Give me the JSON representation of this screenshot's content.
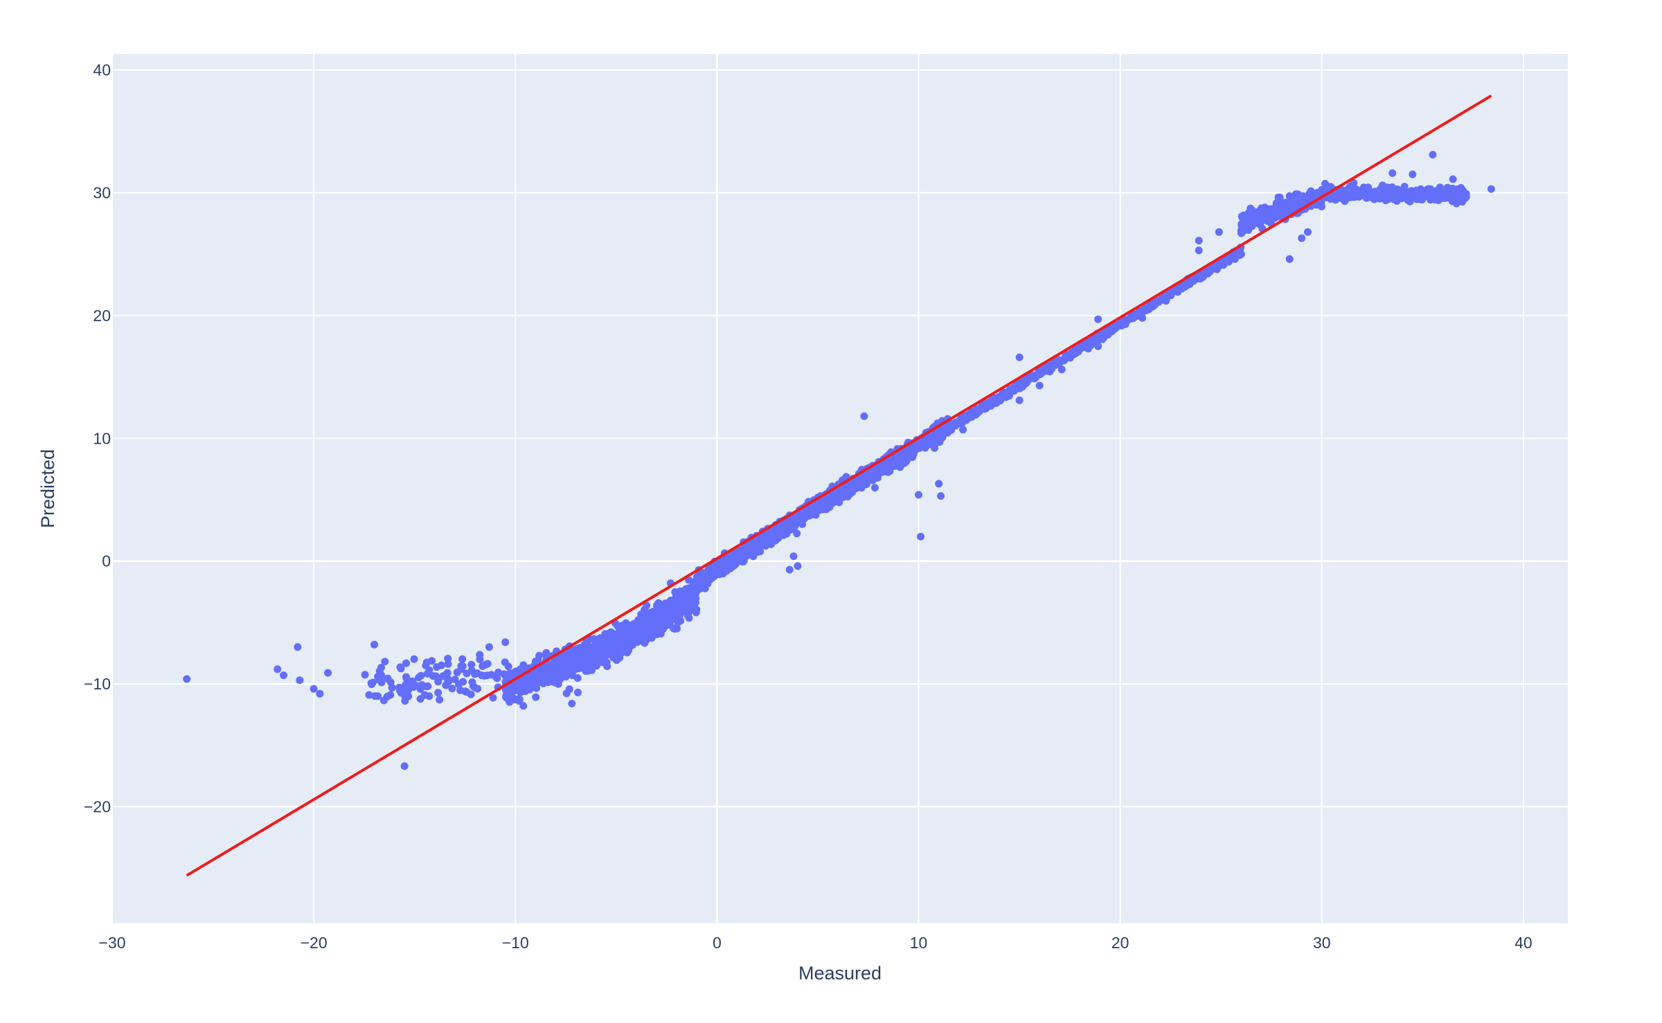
{
  "chart_data": {
    "type": "scatter",
    "title": "",
    "xlabel": "Measured",
    "ylabel": "Predicted",
    "xlim": [
      -30,
      42.2
    ],
    "ylim": [
      -29.5,
      41.3
    ],
    "x_ticks": [
      -30,
      -20,
      -10,
      0,
      10,
      20,
      30,
      40
    ],
    "x_tick_labels": [
      "−30",
      "−20",
      "−10",
      "0",
      "10",
      "20",
      "30",
      "40"
    ],
    "y_ticks": [
      -20,
      -10,
      0,
      10,
      20,
      30,
      40
    ],
    "y_tick_labels": [
      "−20",
      "−10",
      "0",
      "10",
      "20",
      "30",
      "40"
    ],
    "grid": true,
    "legend": "none",
    "colors": {
      "points": "#636efa",
      "line": "#ef1c1c",
      "plot_bg": "#e5ecf6",
      "text": "#2a3f5f"
    },
    "series": [
      {
        "kind": "markers",
        "outliers": [
          [
            -26.3,
            -9.6
          ],
          [
            -21.8,
            -8.8
          ],
          [
            -21.5,
            -9.3
          ],
          [
            -20.8,
            -7.0
          ],
          [
            -20.7,
            -9.7
          ],
          [
            -20.0,
            -10.4
          ],
          [
            -19.7,
            -10.8
          ],
          [
            -19.3,
            -9.1
          ],
          [
            -17.0,
            -6.8
          ],
          [
            -15.5,
            -16.7
          ],
          [
            -14.5,
            -10.9
          ],
          [
            -16.2,
            -10.9
          ],
          [
            -12.5,
            -10.6
          ],
          [
            -11.3,
            -7.0
          ],
          [
            -10.5,
            -6.6
          ],
          [
            -7.2,
            -11.6
          ],
          [
            -6.9,
            -10.7
          ],
          [
            7.3,
            11.8
          ],
          [
            10.0,
            5.4
          ],
          [
            10.1,
            2.0
          ],
          [
            11.0,
            6.3
          ],
          [
            11.1,
            5.3
          ],
          [
            12.2,
            10.7
          ],
          [
            15.0,
            16.6
          ],
          [
            15.0,
            13.1
          ],
          [
            16.0,
            14.3
          ],
          [
            16.0,
            15.2
          ],
          [
            17.1,
            15.6
          ],
          [
            18.9,
            19.7
          ],
          [
            18.9,
            17.5
          ],
          [
            21.1,
            19.8
          ],
          [
            23.9,
            26.1
          ],
          [
            23.9,
            25.3
          ],
          [
            24.9,
            26.8
          ],
          [
            26.0,
            25.0
          ],
          [
            28.4,
            24.6
          ],
          [
            29.0,
            26.3
          ],
          [
            29.3,
            26.8
          ],
          [
            34.1,
            30.5
          ],
          [
            35.5,
            33.1
          ],
          [
            36.5,
            31.1
          ],
          [
            36.9,
            30.4
          ],
          [
            37.1,
            29.9
          ],
          [
            38.4,
            30.3
          ],
          [
            -2.3,
            -1.8
          ],
          [
            3.6,
            -0.7
          ],
          [
            4.0,
            -0.4
          ],
          [
            3.8,
            0.4
          ],
          [
            33.5,
            31.6
          ],
          [
            34.5,
            31.5
          ]
        ],
        "bands": [
          {
            "x_range": [
              -17.5,
              -10.5
            ],
            "center": [
              -12.5,
              -9.6
            ],
            "slope": 0.08,
            "spread": 1.5,
            "count": 110
          },
          {
            "x_range": [
              -10.5,
              -5.0
            ],
            "center": [
              -7.8,
              -8.6
            ],
            "slope": 0.65,
            "spread": 1.0,
            "count": 550
          },
          {
            "x_range": [
              -5.0,
              -1.0
            ],
            "center": [
              -3.0,
              -4.8
            ],
            "slope": 1.05,
            "spread": 0.9,
            "count": 550
          },
          {
            "x_range": [
              -1.0,
              5.5
            ],
            "center": [
              2.2,
              1.6
            ],
            "slope": 1.05,
            "spread": 0.55,
            "count": 850
          },
          {
            "x_range": [
              5.5,
              11.5
            ],
            "center": [
              8.5,
              8.0
            ],
            "slope": 1.0,
            "spread": 0.55,
            "count": 700
          },
          {
            "x_range": [
              11.5,
              26.0
            ],
            "center": [
              18.7,
              18.0
            ],
            "slope": 1.0,
            "spread": 0.25,
            "count": 600
          },
          {
            "x_range": [
              26.0,
              30.0
            ],
            "center": [
              28.0,
              28.6
            ],
            "slope": 0.55,
            "spread": 0.55,
            "count": 350
          },
          {
            "x_range": [
              30.0,
              37.2
            ],
            "center": [
              33.5,
              29.9
            ],
            "slope": -0.02,
            "spread": 0.45,
            "count": 350
          }
        ]
      },
      {
        "kind": "line",
        "x": [
          -26.3,
          38.4
        ],
        "y": [
          -25.6,
          37.9
        ]
      }
    ]
  }
}
